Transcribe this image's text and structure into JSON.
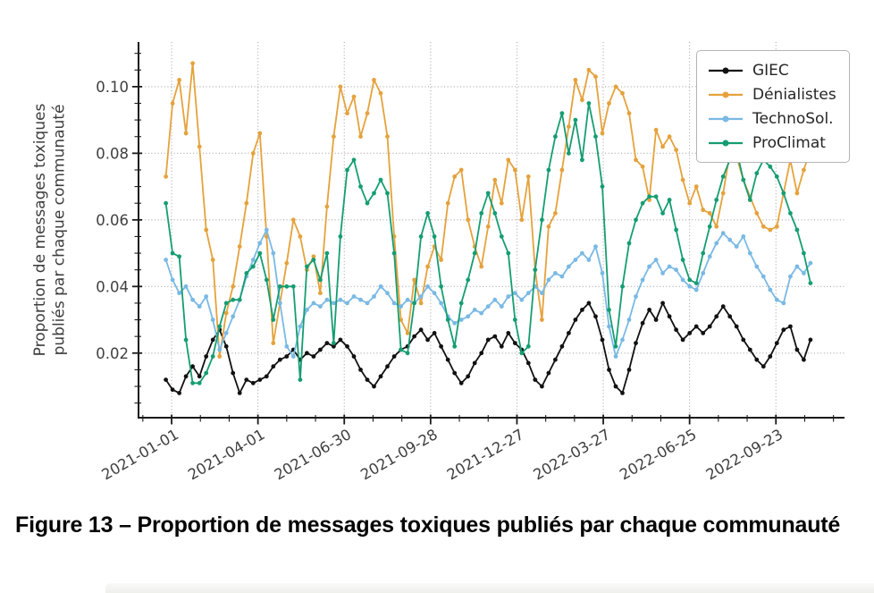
{
  "figure": {
    "caption": "Figure 13 – Proportion de messages toxiques publiés par chaque communauté"
  },
  "chart_data": {
    "type": "line",
    "title": "",
    "xlabel": "",
    "ylabel_lines": [
      "Proportion de messages toxiques",
      "publiés par chaque communauté"
    ],
    "x_tick_days": [
      0,
      90,
      180,
      270,
      360,
      450,
      540,
      630
    ],
    "x_tick_labels": [
      "2021-01-01",
      "2021-04-01",
      "2021-06-30",
      "2021-09-28",
      "2021-12-27",
      "2022-03-27",
      "2022-06-25",
      "2022-09-23"
    ],
    "x_minor_step_days": 30,
    "y_ticks": [
      0.02,
      0.04,
      0.06,
      0.08,
      0.1
    ],
    "y_tick_labels": [
      "0.02",
      "0.04",
      "0.06",
      "0.08",
      "0.10"
    ],
    "y_minor_step": 0.005,
    "xlim_days": [
      -34.5,
      701.5
    ],
    "ylim": [
      0.0006,
      0.1134
    ],
    "grid": "dotted-major",
    "legend_position": "top-right",
    "x_start_day": -6,
    "x_step_days": 7,
    "series": [
      {
        "name": "GIEC",
        "color": "#111111",
        "values": [
          0.012,
          0.009,
          0.008,
          0.013,
          0.016,
          0.013,
          0.019,
          0.024,
          0.027,
          0.022,
          0.014,
          0.008,
          0.012,
          0.011,
          0.012,
          0.013,
          0.016,
          0.018,
          0.019,
          0.021,
          0.018,
          0.02,
          0.019,
          0.021,
          0.023,
          0.022,
          0.024,
          0.022,
          0.019,
          0.015,
          0.012,
          0.01,
          0.013,
          0.016,
          0.019,
          0.021,
          0.022,
          0.025,
          0.027,
          0.024,
          0.026,
          0.022,
          0.018,
          0.014,
          0.011,
          0.013,
          0.017,
          0.02,
          0.024,
          0.025,
          0.022,
          0.026,
          0.023,
          0.021,
          0.017,
          0.012,
          0.01,
          0.014,
          0.018,
          0.022,
          0.026,
          0.03,
          0.033,
          0.035,
          0.031,
          0.024,
          0.015,
          0.01,
          0.008,
          0.015,
          0.023,
          0.029,
          0.033,
          0.03,
          0.035,
          0.031,
          0.027,
          0.024,
          0.026,
          0.028,
          0.026,
          0.028,
          0.031,
          0.034,
          0.031,
          0.028,
          0.024,
          0.021,
          0.018,
          0.016,
          0.019,
          0.023,
          0.027,
          0.028,
          0.021,
          0.018,
          0.024
        ]
      },
      {
        "name": "Dénialistes",
        "color": "#E5A23C",
        "values": [
          0.073,
          0.095,
          0.102,
          0.086,
          0.107,
          0.082,
          0.057,
          0.048,
          0.019,
          0.032,
          0.04,
          0.052,
          0.065,
          0.08,
          0.086,
          0.055,
          0.023,
          0.035,
          0.047,
          0.06,
          0.055,
          0.045,
          0.049,
          0.038,
          0.064,
          0.085,
          0.1,
          0.092,
          0.097,
          0.085,
          0.092,
          0.102,
          0.098,
          0.085,
          0.055,
          0.03,
          0.026,
          0.042,
          0.035,
          0.046,
          0.052,
          0.048,
          0.065,
          0.073,
          0.075,
          0.06,
          0.052,
          0.046,
          0.058,
          0.072,
          0.065,
          0.078,
          0.075,
          0.06,
          0.073,
          0.045,
          0.03,
          0.058,
          0.062,
          0.075,
          0.088,
          0.102,
          0.096,
          0.105,
          0.103,
          0.086,
          0.095,
          0.1,
          0.098,
          0.092,
          0.078,
          0.076,
          0.066,
          0.087,
          0.082,
          0.085,
          0.081,
          0.072,
          0.065,
          0.07,
          0.063,
          0.062,
          0.058,
          0.068,
          0.08,
          0.079,
          0.072,
          0.067,
          0.062,
          0.058,
          0.057,
          0.058,
          0.068,
          0.078,
          0.068,
          0.075,
          0.081
        ]
      },
      {
        "name": "TechnoSol.",
        "color": "#79B9E4",
        "values": [
          0.048,
          0.042,
          0.038,
          0.04,
          0.036,
          0.034,
          0.037,
          0.03,
          0.021,
          0.026,
          0.031,
          0.036,
          0.043,
          0.048,
          0.053,
          0.057,
          0.05,
          0.035,
          0.022,
          0.019,
          0.028,
          0.033,
          0.035,
          0.034,
          0.036,
          0.035,
          0.036,
          0.035,
          0.037,
          0.036,
          0.035,
          0.037,
          0.04,
          0.038,
          0.035,
          0.034,
          0.036,
          0.035,
          0.037,
          0.04,
          0.038,
          0.035,
          0.031,
          0.029,
          0.03,
          0.031,
          0.033,
          0.032,
          0.034,
          0.036,
          0.034,
          0.037,
          0.038,
          0.036,
          0.038,
          0.04,
          0.038,
          0.042,
          0.044,
          0.043,
          0.046,
          0.048,
          0.05,
          0.048,
          0.052,
          0.044,
          0.028,
          0.019,
          0.024,
          0.03,
          0.037,
          0.042,
          0.046,
          0.048,
          0.044,
          0.046,
          0.045,
          0.042,
          0.04,
          0.039,
          0.044,
          0.049,
          0.053,
          0.056,
          0.054,
          0.052,
          0.055,
          0.05,
          0.046,
          0.043,
          0.039,
          0.036,
          0.035,
          0.043,
          0.046,
          0.044,
          0.047
        ]
      },
      {
        "name": "ProClimat",
        "color": "#159D72",
        "values": [
          0.065,
          0.05,
          0.049,
          0.024,
          0.011,
          0.011,
          0.014,
          0.019,
          0.028,
          0.035,
          0.036,
          0.036,
          0.044,
          0.046,
          0.05,
          0.042,
          0.03,
          0.04,
          0.04,
          0.04,
          0.012,
          0.046,
          0.048,
          0.042,
          0.05,
          0.023,
          0.055,
          0.075,
          0.078,
          0.07,
          0.065,
          0.068,
          0.072,
          0.068,
          0.05,
          0.021,
          0.02,
          0.035,
          0.055,
          0.062,
          0.055,
          0.04,
          0.03,
          0.022,
          0.035,
          0.042,
          0.05,
          0.062,
          0.068,
          0.062,
          0.055,
          0.05,
          0.03,
          0.02,
          0.022,
          0.045,
          0.06,
          0.075,
          0.085,
          0.092,
          0.08,
          0.09,
          0.078,
          0.095,
          0.085,
          0.07,
          0.033,
          0.022,
          0.04,
          0.053,
          0.06,
          0.065,
          0.067,
          0.067,
          0.062,
          0.066,
          0.057,
          0.048,
          0.042,
          0.041,
          0.05,
          0.058,
          0.066,
          0.073,
          0.078,
          0.081,
          0.072,
          0.066,
          0.074,
          0.078,
          0.076,
          0.073,
          0.068,
          0.062,
          0.057,
          0.05,
          0.041
        ]
      }
    ]
  },
  "styles": {
    "grid_color": "#a6a6a6",
    "spine_color": "#1a1a1a",
    "tick_label_color": "#404040",
    "axis_label_color": "#3d3d3d",
    "legend_border_color": "#b4b4b4",
    "background": "#ffffff",
    "footer_strip_color": "#efefec"
  }
}
